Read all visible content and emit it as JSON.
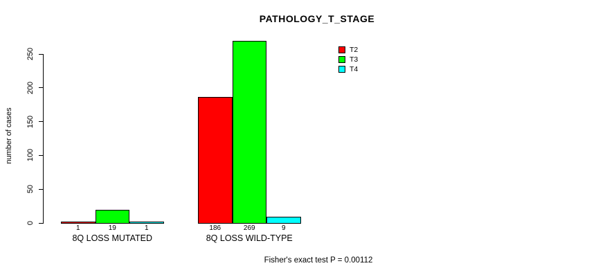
{
  "window": {
    "background_color": "#ffffff",
    "text_color": "#000000"
  },
  "chart_data": {
    "type": "bar",
    "title": "PATHOLOGY_T_STAGE",
    "xlabel": "",
    "ylabel": "number of cases",
    "ylim": [
      0,
      250
    ],
    "yticks": [
      0,
      50,
      100,
      150,
      200,
      250
    ],
    "grid": false,
    "categories": [
      "8Q LOSS MUTATED",
      "8Q LOSS WILD-TYPE"
    ],
    "series": [
      {
        "name": "T2",
        "color": "#ff0000",
        "values": [
          1,
          186
        ]
      },
      {
        "name": "T3",
        "color": "#00ff00",
        "values": [
          19,
          269
        ]
      },
      {
        "name": "T4",
        "color": "#00ffff",
        "values": [
          1,
          9
        ]
      }
    ],
    "bar_value_labels": [
      [
        "1",
        "19",
        "1"
      ],
      [
        "186",
        "269",
        "9"
      ]
    ],
    "legend": {
      "position": "top-right",
      "entries": [
        "T2",
        "T3",
        "T4"
      ]
    },
    "bar_border_color": "#000000",
    "footer": "Fisher's exact test P = 0.00112"
  }
}
